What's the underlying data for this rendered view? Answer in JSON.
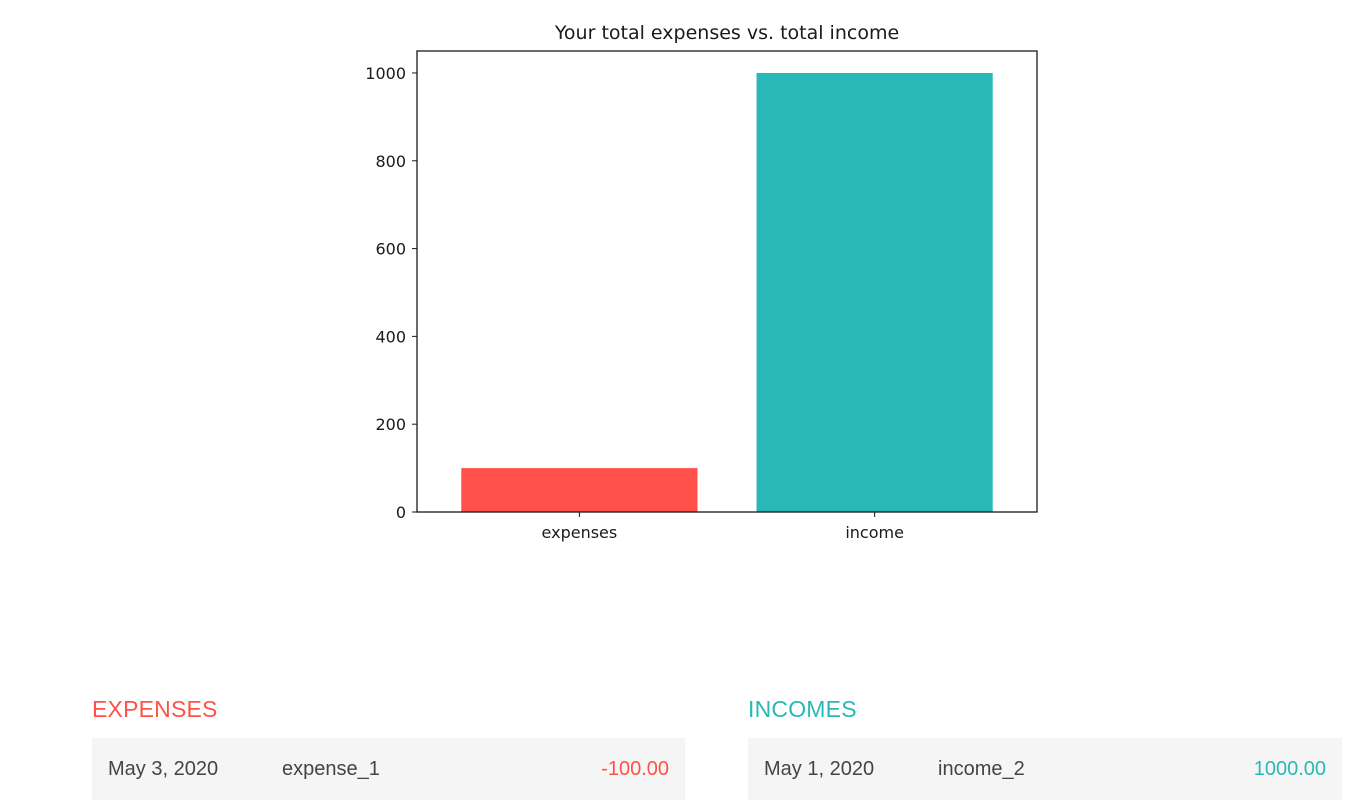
{
  "colors": {
    "expense": "#ff5149",
    "income": "#28b9b6",
    "axis": "#1a1a1a",
    "row_bg": "#f5f5f5",
    "text": "#444444"
  },
  "chart_data": {
    "type": "bar",
    "title": "Your total expenses vs. total income",
    "categories": [
      "expenses",
      "income"
    ],
    "values": [
      100,
      1000
    ],
    "bar_colors": [
      "#ff5149",
      "#28b9b6"
    ],
    "yticks": [
      0,
      200,
      400,
      600,
      800,
      1000
    ],
    "ylim": [
      0,
      1050
    ],
    "xlabel": "",
    "ylabel": "",
    "grid": false,
    "legend": "none"
  },
  "expenses": {
    "title": "EXPENSES",
    "items": [
      {
        "date": "May 3, 2020",
        "name": "expense_1",
        "amount": "-100.00"
      }
    ]
  },
  "incomes": {
    "title": "INCOMES",
    "items": [
      {
        "date": "May 1, 2020",
        "name": "income_2",
        "amount": "1000.00"
      }
    ]
  }
}
